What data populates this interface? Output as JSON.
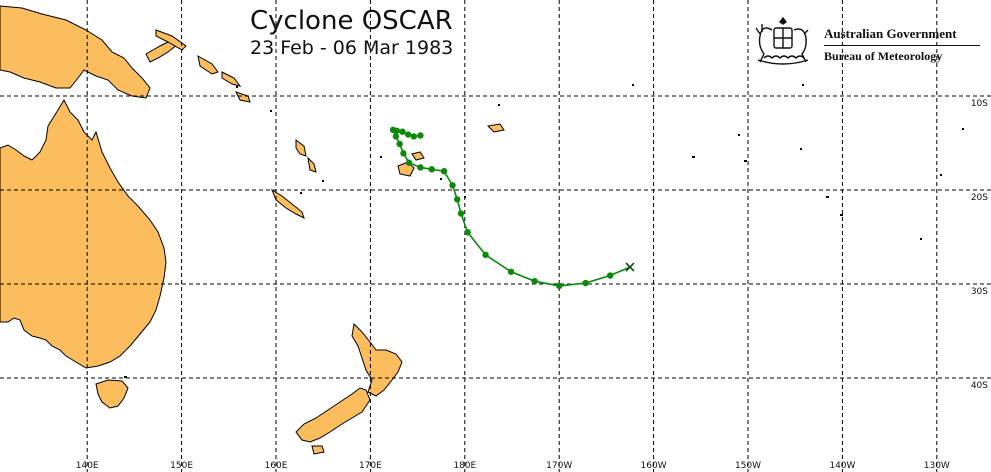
{
  "title": "Cyclone OSCAR",
  "subtitle": "23 Feb - 06 Mar 1983",
  "agency": {
    "government": "Australian Government",
    "bureau": "Bureau of Meteorology",
    "logo": "commonwealth-coat-of-arms"
  },
  "grid": {
    "longitude_labels": [
      "140E",
      "150E",
      "160E",
      "170E",
      "180E",
      "170W",
      "160W",
      "150W",
      "140W",
      "130W"
    ],
    "latitude_labels": [
      "10S",
      "20S",
      "30S",
      "40S"
    ]
  },
  "colors": {
    "land": "#fbbd5e",
    "ocean": "#ffffff",
    "track": "#0a8a0a",
    "grid": "#000000"
  },
  "track": {
    "name": "OSCAR",
    "end_marker": "x-mark",
    "points": [
      {
        "lon": 175.3,
        "lat": -14.2
      },
      {
        "lon": 174.6,
        "lat": -14.3
      },
      {
        "lon": 174.0,
        "lat": -14.1
      },
      {
        "lon": 173.4,
        "lat": -13.8
      },
      {
        "lon": 172.8,
        "lat": -13.7
      },
      {
        "lon": 172.4,
        "lat": -13.6
      },
      {
        "lon": 172.7,
        "lat": -14.3
      },
      {
        "lon": 173.1,
        "lat": -15.1
      },
      {
        "lon": 173.5,
        "lat": -16.1
      },
      {
        "lon": 174.1,
        "lat": -17.1
      },
      {
        "lon": 175.3,
        "lat": -17.6
      },
      {
        "lon": 176.5,
        "lat": -17.8
      },
      {
        "lon": 177.8,
        "lat": -18.0
      },
      {
        "lon": 178.7,
        "lat": -19.5
      },
      {
        "lon": 179.2,
        "lat": -21.0
      },
      {
        "lon": 179.6,
        "lat": -22.5
      },
      {
        "lon": -179.7,
        "lat": -24.5
      },
      {
        "lon": -177.8,
        "lat": -26.9
      },
      {
        "lon": -175.1,
        "lat": -28.7
      },
      {
        "lon": -172.6,
        "lat": -29.7
      },
      {
        "lon": -170.0,
        "lat": -30.2
      },
      {
        "lon": -167.2,
        "lat": -29.9
      },
      {
        "lon": -164.6,
        "lat": -29.1
      },
      {
        "lon": -162.5,
        "lat": -28.2
      }
    ]
  },
  "regions": [
    "Australia",
    "Tasmania",
    "New Zealand",
    "Papua New Guinea",
    "New Caledonia",
    "Vanuatu",
    "Fiji",
    "Solomon Islands"
  ]
}
